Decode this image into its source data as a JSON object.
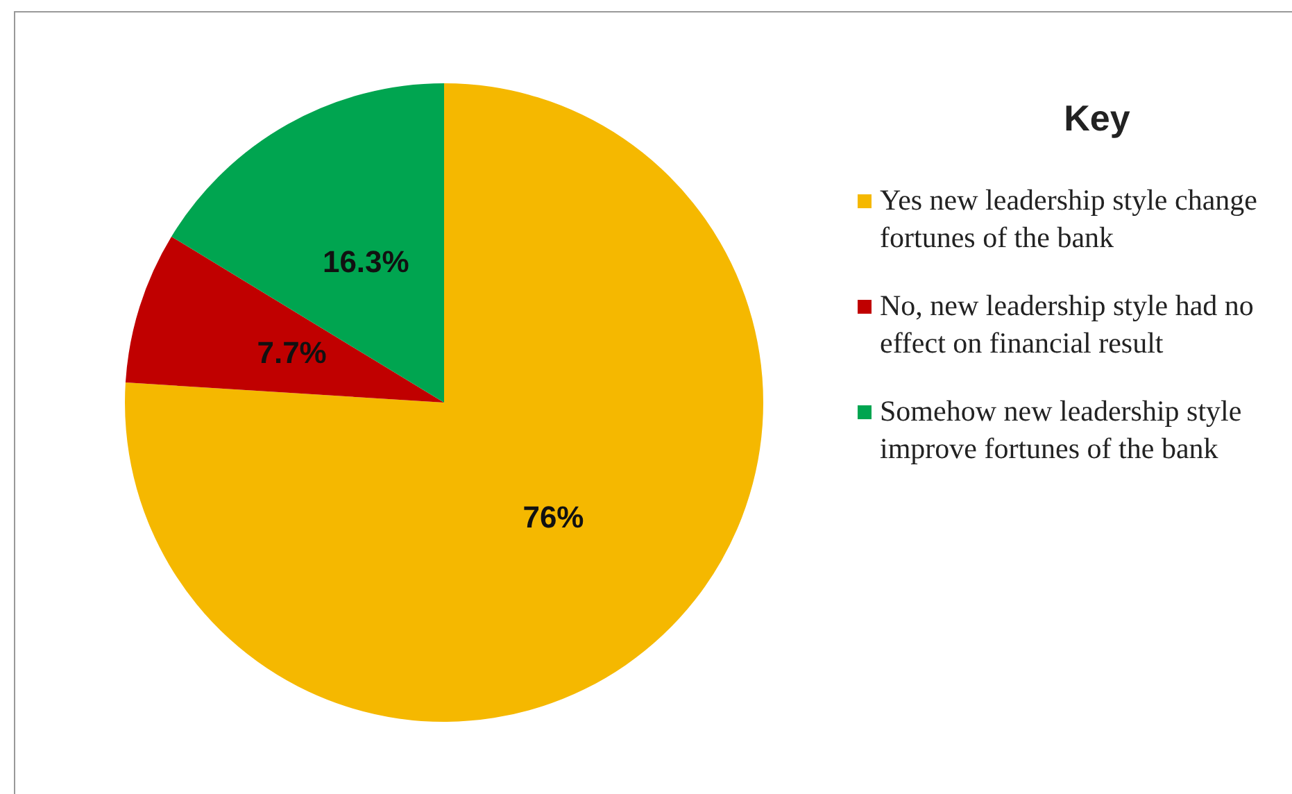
{
  "chart_data": {
    "type": "pie",
    "legend_title": "Key",
    "legend": "right",
    "categories": [
      "Yes new leadership style change fortunes of the bank",
      "No, new leadership style had no effect on financial result",
      "Somehow new leadership style improve fortunes of the bank"
    ],
    "values": [
      76,
      7.7,
      16.3
    ],
    "colors": [
      "#f5b800",
      "#c00000",
      "#00a550"
    ],
    "value_labels": [
      "76%",
      "7.7%",
      "16.3%"
    ]
  }
}
